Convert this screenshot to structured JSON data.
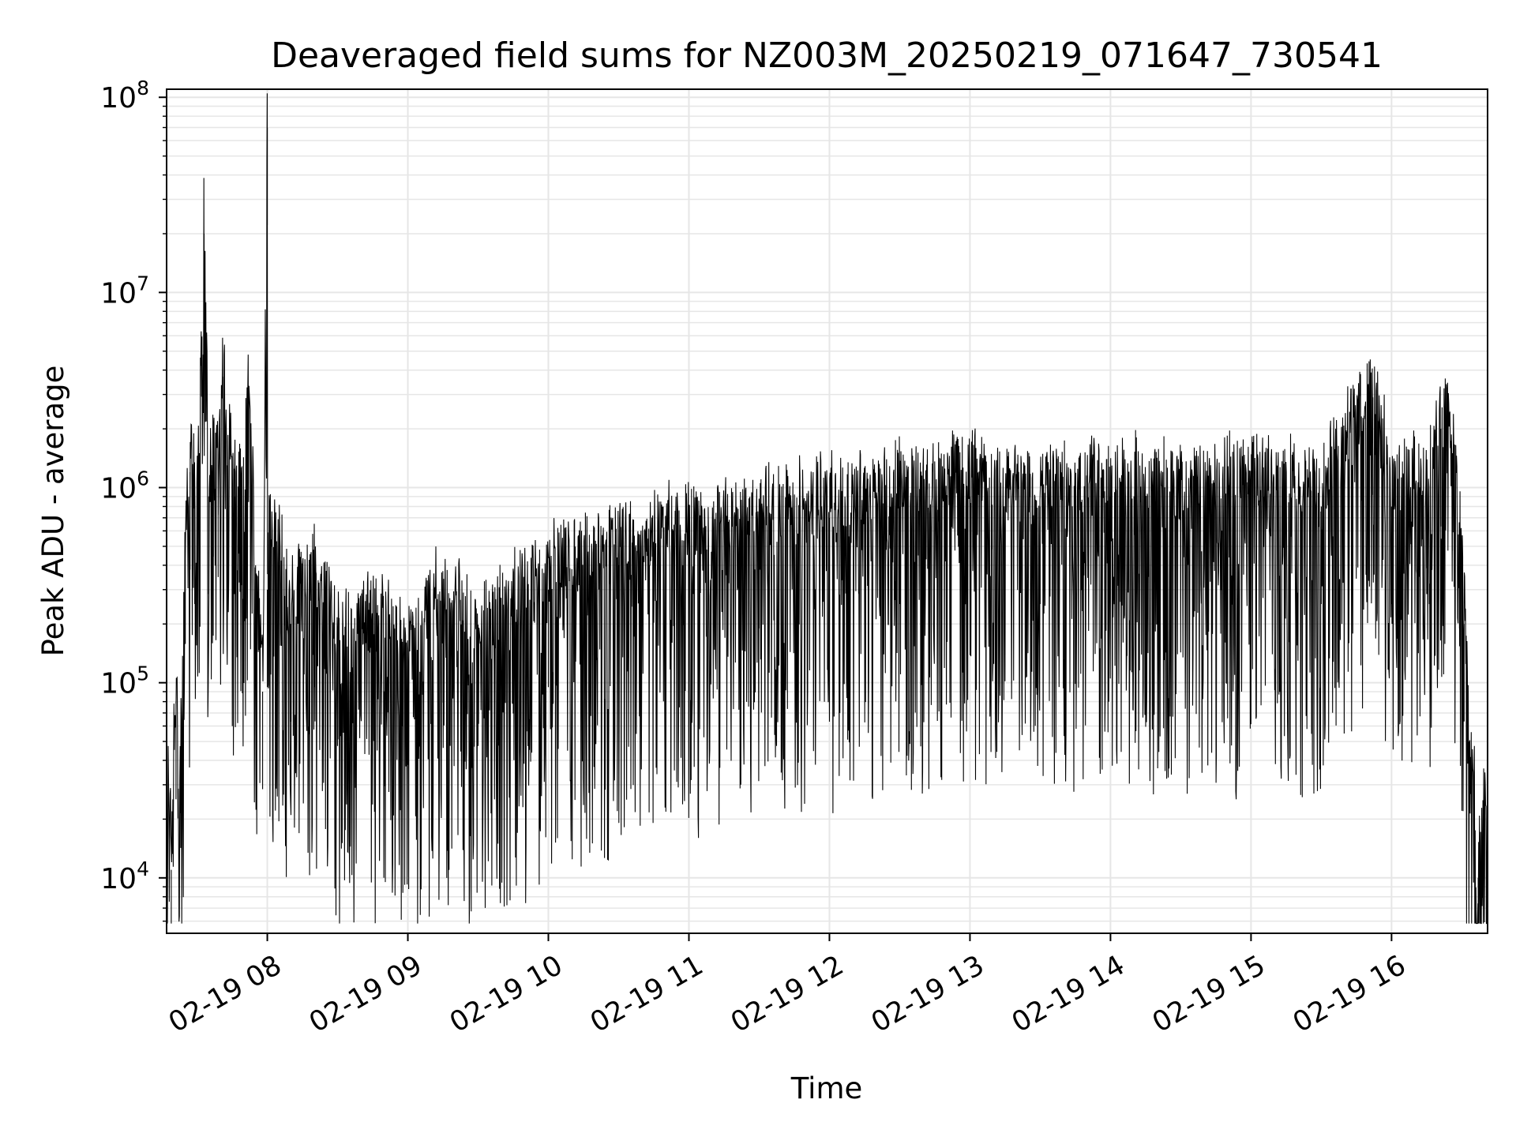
{
  "chart_data": {
    "type": "line",
    "title": "Deaveraged field sums for NZ003M_20250219_071647_730541",
    "xlabel": "Time",
    "ylabel": "Peak ADU - average",
    "yscale": "log",
    "ylim": [
      5200,
      110000000
    ],
    "xlim": [
      "2025-02-19 07:17",
      "2025-02-19 16:41"
    ],
    "grid": true,
    "line_color": "#000000",
    "grid_color": "#e6e6e6",
    "x_ticks": [
      {
        "time": "2025-02-19 08:00",
        "label": "02-19 08"
      },
      {
        "time": "2025-02-19 09:00",
        "label": "02-19 09"
      },
      {
        "time": "2025-02-19 10:00",
        "label": "02-19 10"
      },
      {
        "time": "2025-02-19 11:00",
        "label": "02-19 11"
      },
      {
        "time": "2025-02-19 12:00",
        "label": "02-19 12"
      },
      {
        "time": "2025-02-19 13:00",
        "label": "02-19 13"
      },
      {
        "time": "2025-02-19 14:00",
        "label": "02-19 14"
      },
      {
        "time": "2025-02-19 15:00",
        "label": "02-19 15"
      },
      {
        "time": "2025-02-19 16:00",
        "label": "02-19 16"
      }
    ],
    "y_ticks": [
      {
        "value": 10000,
        "base": "10",
        "exp": "4"
      },
      {
        "value": 100000,
        "base": "10",
        "exp": "5"
      },
      {
        "value": 1000000,
        "base": "10",
        "exp": "6"
      },
      {
        "value": 10000000,
        "base": "10",
        "exp": "7"
      },
      {
        "value": 100000000,
        "base": "10",
        "exp": "8"
      }
    ],
    "series": [
      {
        "x": [
          "2025-02-19 07:17",
          "2025-02-19 07:19",
          "2025-02-19 07:21",
          "2025-02-19 07:23",
          "2025-02-19 07:25",
          "2025-02-19 07:27",
          "2025-02-19 07:29",
          "2025-02-19 07:31",
          "2025-02-19 07:33",
          "2025-02-19 07:35",
          "2025-02-19 07:37",
          "2025-02-19 07:39",
          "2025-02-19 07:41",
          "2025-02-19 07:43",
          "2025-02-19 07:46",
          "2025-02-19 07:49",
          "2025-02-19 07:52",
          "2025-02-19 07:55",
          "2025-02-19 07:58",
          "2025-02-19 08:00",
          "2025-02-19 08:00",
          "2025-02-19 08:01",
          "2025-02-19 08:05",
          "2025-02-19 08:10",
          "2025-02-19 08:20",
          "2025-02-19 08:30",
          "2025-02-19 08:45",
          "2025-02-19 09:00",
          "2025-02-19 09:15",
          "2025-02-19 09:30",
          "2025-02-19 09:45",
          "2025-02-19 10:00",
          "2025-02-19 10:30",
          "2025-02-19 11:00",
          "2025-02-19 11:30",
          "2025-02-19 12:00",
          "2025-02-19 12:30",
          "2025-02-19 13:00",
          "2025-02-19 13:30",
          "2025-02-19 14:00",
          "2025-02-19 14:30",
          "2025-02-19 15:00",
          "2025-02-19 15:30",
          "2025-02-19 15:52",
          "2025-02-19 16:00",
          "2025-02-19 16:15",
          "2025-02-19 16:21",
          "2025-02-19 16:26",
          "2025-02-19 16:29",
          "2025-02-19 16:31",
          "2025-02-19 16:33",
          "2025-02-19 16:35",
          "2025-02-19 16:37",
          "2025-02-19 16:39",
          "2025-02-19 16:41"
        ],
        "y": [
          60000,
          11000,
          80000,
          45000,
          500000,
          1200000,
          800000,
          1500000,
          20000000,
          900000,
          1400000,
          1100000,
          3700000,
          1300000,
          900000,
          1000000,
          2900000,
          400000,
          90000,
          70000000,
          300000,
          500000,
          400000,
          200000,
          300000,
          150000,
          180000,
          120000,
          250000,
          150000,
          220000,
          300000,
          400000,
          500000,
          600000,
          700000,
          800000,
          900000,
          800000,
          900000,
          800000,
          900000,
          800000,
          2900000,
          800000,
          900000,
          2000000,
          1500000,
          600000,
          200000,
          50000,
          30000,
          10000,
          25000,
          12000
        ]
      }
    ]
  }
}
